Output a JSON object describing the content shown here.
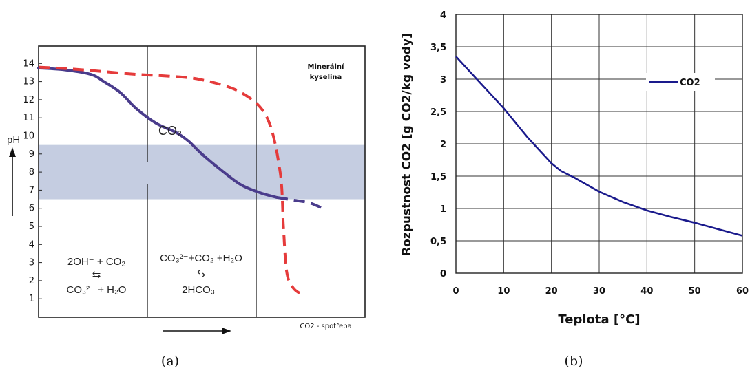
{
  "chart_data": [
    {
      "type": "line",
      "caption": "(a)",
      "ylabel": "pH",
      "xlabel": "CO2 - spotřeba",
      "yticks": [
        "1",
        "2",
        "3",
        "4",
        "5",
        "6",
        "7",
        "8",
        "9",
        "10",
        "11",
        "12",
        "13",
        "14"
      ],
      "ylim": [
        0,
        15
      ],
      "band": [
        6.5,
        9.5
      ],
      "region_labels": {
        "r1_line1": "2OH⁻ + CO₂",
        "r1_arrow": "⇆",
        "r1_line2": "CO₃²⁻ + H₂O",
        "r2_line1": "CO₃²⁻+CO₂ +H₂O",
        "r2_arrow": "⇆",
        "r2_line2": "2HCO₃⁻",
        "r3_line1": "Minerální",
        "r3_line2": "kyselina"
      },
      "series": [
        {
          "name": "CO₂",
          "color": "#4a3c8c",
          "style": "solid",
          "points": [
            [
              0,
              13.75
            ],
            [
              0.08,
              13.65
            ],
            [
              0.16,
              13.4
            ],
            [
              0.2,
              13.0
            ],
            [
              0.25,
              12.4
            ],
            [
              0.3,
              11.5
            ],
            [
              0.36,
              10.7
            ],
            [
              0.42,
              10.2
            ],
            [
              0.46,
              9.7
            ],
            [
              0.5,
              9.0
            ],
            [
              0.56,
              8.1
            ],
            [
              0.62,
              7.3
            ],
            [
              0.68,
              6.85
            ],
            [
              0.73,
              6.6
            ]
          ]
        },
        {
          "name": "CO₂ (extrapolated)",
          "color": "#4a3c8c",
          "style": "dashed",
          "points": [
            [
              0.73,
              6.6
            ],
            [
              0.78,
              6.45
            ],
            [
              0.83,
              6.3
            ],
            [
              0.87,
              6.0
            ]
          ]
        },
        {
          "name": "Minerální kyselina",
          "color": "#e53b3b",
          "style": "dashed",
          "points": [
            [
              0,
              13.8
            ],
            [
              0.1,
              13.7
            ],
            [
              0.2,
              13.55
            ],
            [
              0.3,
              13.4
            ],
            [
              0.4,
              13.3
            ],
            [
              0.5,
              13.1
            ],
            [
              0.62,
              12.4
            ],
            [
              0.7,
              11.0
            ],
            [
              0.74,
              8.0
            ],
            [
              0.75,
              5.0
            ],
            [
              0.76,
              2.5
            ],
            [
              0.78,
              1.6
            ],
            [
              0.81,
              1.2
            ]
          ]
        }
      ]
    },
    {
      "type": "line",
      "caption": "(b)",
      "xlabel": "Teplota [°C]",
      "ylabel": "Rozpustnost CO2 [g CO2/kg vody]",
      "xlim": [
        0,
        60
      ],
      "ylim": [
        0,
        4
      ],
      "xticks": [
        "0",
        "10",
        "20",
        "30",
        "40",
        "50",
        "60"
      ],
      "yticks": [
        "0",
        "0,5",
        "1",
        "1,5",
        "2",
        "2,5",
        "3",
        "3,5",
        "4"
      ],
      "legend": "top-right",
      "series": [
        {
          "name": "CO2",
          "color": "#1a1a8c",
          "x": [
            0,
            5,
            10,
            15,
            20,
            22,
            25,
            30,
            35,
            40,
            45,
            50,
            55,
            60
          ],
          "y": [
            3.35,
            2.95,
            2.55,
            2.1,
            1.7,
            1.58,
            1.47,
            1.26,
            1.1,
            0.97,
            0.87,
            0.78,
            0.68,
            0.58
          ]
        }
      ]
    }
  ]
}
